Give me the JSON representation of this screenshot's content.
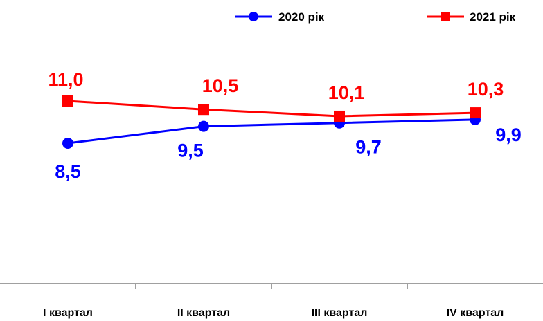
{
  "chart_data": {
    "type": "line",
    "categories": [
      "I квартал",
      "II квартал",
      "III квартал",
      "IV квартал"
    ],
    "series": [
      {
        "name": "2020 рік",
        "values": [
          8.5,
          9.5,
          9.7,
          9.9
        ],
        "labels": [
          "8,5",
          "9,5",
          "9,7",
          "9,9"
        ],
        "color": "#0000FF",
        "marker": "circle"
      },
      {
        "name": "2021 рік",
        "values": [
          11.0,
          10.5,
          10.1,
          10.3
        ],
        "labels": [
          "11,0",
          "10,5",
          "10,1",
          "10,3"
        ],
        "color": "#FF0000",
        "marker": "square"
      }
    ],
    "legend_position": "top-right",
    "grid": false,
    "y_axis_visible": false
  }
}
